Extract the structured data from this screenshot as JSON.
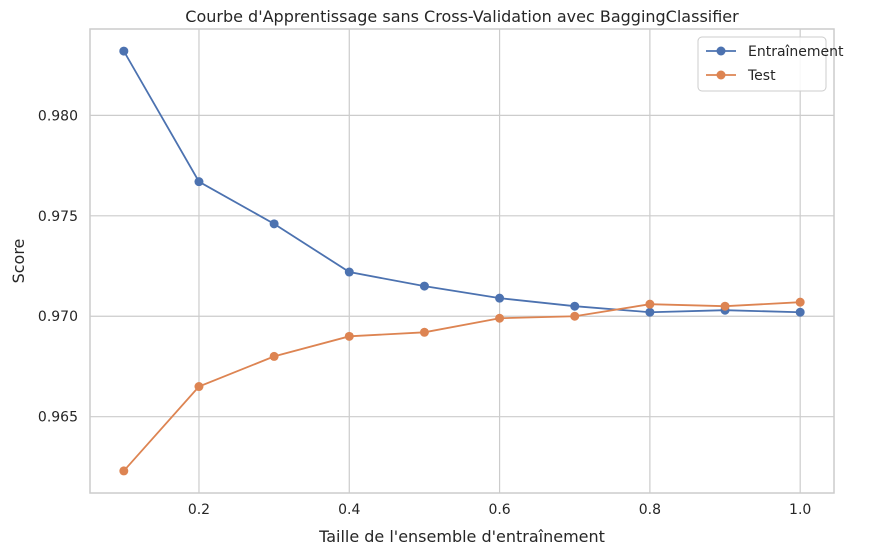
{
  "chart_data": {
    "type": "line",
    "title": "Courbe d'Apprentissage sans Cross-Validation avec BaggingClassifier",
    "xlabel": "Taille de l'ensemble d'entraînement",
    "ylabel": "Score",
    "x": [
      0.1,
      0.2,
      0.3,
      0.4,
      0.5,
      0.6,
      0.7,
      0.8,
      0.9,
      1.0
    ],
    "xlim": [
      0.055,
      1.045
    ],
    "ylim": [
      0.9612,
      0.9843
    ],
    "xticks": [
      0.2,
      0.4,
      0.6,
      0.8,
      1.0
    ],
    "xtick_labels": [
      "0.2",
      "0.4",
      "0.6",
      "0.8",
      "1.0"
    ],
    "yticks": [
      0.965,
      0.97,
      0.975,
      0.98
    ],
    "ytick_labels": [
      "0.965",
      "0.970",
      "0.975",
      "0.980"
    ],
    "grid": true,
    "legend_position": "top-right",
    "series": [
      {
        "name": "Entraînement",
        "color": "#4c72b0",
        "values": [
          0.9832,
          0.9767,
          0.9746,
          0.9722,
          0.9715,
          0.9709,
          0.9705,
          0.9702,
          0.9703,
          0.9702
        ]
      },
      {
        "name": "Test",
        "color": "#dd8452",
        "values": [
          0.9623,
          0.9665,
          0.968,
          0.969,
          0.9692,
          0.9699,
          0.97,
          0.9706,
          0.9705,
          0.9707
        ]
      }
    ]
  }
}
